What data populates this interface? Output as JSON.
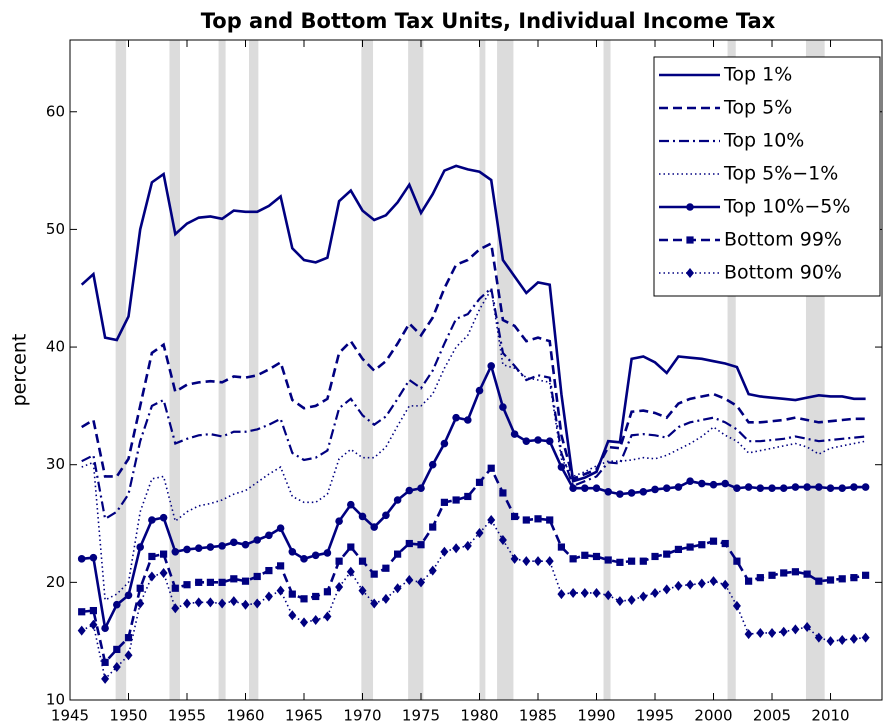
{
  "chart_data": {
    "type": "line",
    "title": "Top and Bottom Tax Units, Individual Income Tax",
    "y_label": "percent",
    "x": [
      1946,
      1947,
      1948,
      1949,
      1950,
      1951,
      1952,
      1953,
      1954,
      1955,
      1956,
      1957,
      1958,
      1959,
      1960,
      1961,
      1962,
      1963,
      1964,
      1965,
      1966,
      1967,
      1968,
      1969,
      1970,
      1971,
      1972,
      1973,
      1974,
      1975,
      1976,
      1977,
      1978,
      1979,
      1980,
      1981,
      1982,
      1983,
      1984,
      1985,
      1986,
      1987,
      1988,
      1989,
      1990,
      1991,
      1992,
      1993,
      1994,
      1995,
      1996,
      1997,
      1998,
      1999,
      2000,
      2001,
      2002,
      2003,
      2004,
      2005,
      2006,
      2007,
      2008,
      2009,
      2010,
      2011,
      2012,
      2013
    ],
    "xlim": [
      1945,
      2014.4
    ],
    "xticks": [
      1945,
      1950,
      1955,
      1960,
      1965,
      1970,
      1975,
      1980,
      1985,
      1990,
      1995,
      2000,
      2005,
      2010
    ],
    "ylim": [
      10,
      66.1
    ],
    "yticks": [
      10,
      20,
      30,
      40,
      50,
      60
    ],
    "legend": "upper right",
    "grid": false,
    "shaded_periods": [
      [
        1948.9,
        1949.8
      ],
      [
        1953.5,
        1954.4
      ],
      [
        1957.7,
        1958.3
      ],
      [
        1960.3,
        1961.1
      ],
      [
        1969.9,
        1970.9
      ],
      [
        1973.9,
        1975.2
      ],
      [
        1980.0,
        1980.5
      ],
      [
        1981.5,
        1982.9
      ],
      [
        1990.6,
        1991.2
      ],
      [
        2001.2,
        2001.9
      ],
      [
        2007.9,
        2009.5
      ]
    ],
    "shade_color": "#dcdcdc",
    "series": [
      {
        "name": "Top 1%",
        "color": "#000080",
        "line_style": "solid",
        "marker": "none",
        "values": [
          45.3,
          46.2,
          40.8,
          40.6,
          42.6,
          50,
          54,
          54.7,
          49.6,
          50.5,
          51,
          51.1,
          50.9,
          51.6,
          51.5,
          51.5,
          52,
          52.8,
          48.4,
          47.4,
          47.2,
          47.6,
          52.4,
          53.3,
          51.6,
          50.8,
          51.2,
          52.3,
          53.8,
          51.4,
          53,
          55,
          55.4,
          55.1,
          54.9,
          54.2,
          47.4,
          46,
          44.6,
          45.5,
          45.3,
          36,
          28.6,
          28.9,
          29.4,
          32,
          31.9,
          39,
          39.2,
          38.7,
          37.8,
          39.2,
          39.1,
          39,
          38.8,
          38.6,
          38.3,
          36,
          35.8,
          35.7,
          35.6,
          35.5,
          35.7,
          35.9,
          35.8,
          35.8,
          35.6,
          35.6
        ]
      },
      {
        "name": "Top 5%",
        "color": "#000080",
        "line_style": "dashed",
        "marker": "none",
        "values": [
          33.2,
          33.8,
          29,
          29,
          30.5,
          35,
          39.5,
          40.2,
          36.2,
          36.8,
          37,
          37.1,
          37,
          37.5,
          37.4,
          37.6,
          38.1,
          38.7,
          35.5,
          34.8,
          35,
          35.6,
          39.5,
          40.5,
          39,
          38,
          38.8,
          40.3,
          42,
          41,
          42.5,
          45,
          47,
          47.4,
          48.3,
          48.8,
          42.3,
          41.8,
          40.5,
          40.8,
          40.5,
          32.5,
          28.8,
          29.2,
          29.6,
          31.5,
          31.4,
          34.5,
          34.6,
          34.4,
          34,
          35.2,
          35.6,
          35.8,
          36,
          35.6,
          35,
          33.6,
          33.6,
          33.7,
          33.8,
          34,
          33.8,
          33.6,
          33.7,
          33.8,
          33.9,
          33.9
        ]
      },
      {
        "name": "Top 10%",
        "color": "#000080",
        "line_style": "dashdot",
        "marker": "none",
        "values": [
          30.3,
          30.8,
          25.4,
          26,
          27.5,
          32,
          35,
          35.5,
          31.8,
          32.2,
          32.5,
          32.6,
          32.4,
          32.8,
          32.8,
          33,
          33.4,
          33.9,
          31,
          30.4,
          30.6,
          31.2,
          34.8,
          35.6,
          34.2,
          33.4,
          34.1,
          35.6,
          37.2,
          36.5,
          38,
          40.3,
          42.4,
          42.8,
          44.1,
          45,
          39.5,
          38.4,
          37.2,
          37.6,
          37.4,
          31,
          28.2,
          28.6,
          29,
          30.2,
          30.1,
          32.5,
          32.6,
          32.5,
          32.3,
          33.2,
          33.6,
          33.8,
          34,
          33.6,
          33,
          32,
          32,
          32.1,
          32.2,
          32.4,
          32.2,
          32,
          32.1,
          32.2,
          32.3,
          32.4
        ]
      },
      {
        "name": "Top 5%−1%",
        "color": "#000080",
        "line_style": "dotted",
        "marker": "none",
        "values": [
          29.8,
          30.2,
          18.5,
          19,
          20,
          26,
          28.8,
          29,
          25.2,
          26,
          26.5,
          26.7,
          27,
          27.5,
          27.8,
          28.5,
          29.2,
          29.8,
          27.3,
          26.8,
          26.8,
          27.5,
          30.5,
          31.3,
          30.6,
          30.6,
          31.5,
          33.3,
          35,
          35,
          36,
          38.2,
          40,
          41,
          43.2,
          44.9,
          38.5,
          38.2,
          37.4,
          37.2,
          37,
          30.5,
          29,
          29.4,
          29.9,
          30.3,
          30.3,
          30.4,
          30.6,
          30.5,
          30.8,
          31.3,
          31.8,
          32.4,
          33.2,
          32.5,
          32,
          31,
          31.2,
          31.4,
          31.6,
          31.8,
          31.5,
          30.9,
          31.4,
          31.6,
          31.8,
          32
        ]
      },
      {
        "name": "Top 10%−5%",
        "color": "#000080",
        "line_style": "solid",
        "marker": "circle",
        "values": [
          22,
          22.1,
          16.1,
          18.1,
          18.9,
          23,
          25.3,
          25.5,
          22.6,
          22.8,
          22.9,
          23,
          23.1,
          23.4,
          23.2,
          23.6,
          24,
          24.6,
          22.6,
          22,
          22.3,
          22.5,
          25.2,
          26.6,
          25.6,
          24.7,
          25.7,
          27,
          27.8,
          28,
          30,
          31.8,
          34,
          33.8,
          36.3,
          38.4,
          34.9,
          32.6,
          32,
          32.1,
          32,
          29.8,
          28,
          28,
          28,
          27.7,
          27.5,
          27.6,
          27.7,
          27.9,
          28,
          28.1,
          28.6,
          28.4,
          28.3,
          28.4,
          28,
          28.1,
          28,
          28,
          28,
          28.1,
          28.1,
          28.1,
          28,
          28,
          28.1,
          28.1
        ]
      },
      {
        "name": "Bottom 99%",
        "color": "#000080",
        "line_style": "dashed",
        "marker": "square",
        "values": [
          17.5,
          17.6,
          13.2,
          14.3,
          15.3,
          19.5,
          22.2,
          22.4,
          19.5,
          19.8,
          20,
          20,
          20,
          20.3,
          20.1,
          20.5,
          21,
          21.4,
          19,
          18.6,
          18.8,
          19.2,
          21.8,
          23,
          21.8,
          20.7,
          21.2,
          22.4,
          23.3,
          23.2,
          24.7,
          26.8,
          27,
          27.3,
          28.5,
          29.7,
          27.6,
          25.6,
          25.3,
          25.4,
          25.3,
          23,
          22,
          22.3,
          22.2,
          21.9,
          21.7,
          21.8,
          21.8,
          22.2,
          22.4,
          22.8,
          23,
          23.2,
          23.5,
          23.3,
          21.8,
          20.1,
          20.4,
          20.6,
          20.8,
          20.9,
          20.7,
          20.1,
          20.2,
          20.3,
          20.4,
          20.6
        ]
      },
      {
        "name": "Bottom 90%",
        "color": "#000080",
        "line_style": "dotted",
        "marker": "diamond",
        "values": [
          15.9,
          16.4,
          11.8,
          12.8,
          13.8,
          18.2,
          20.5,
          20.8,
          17.8,
          18.2,
          18.3,
          18.3,
          18.2,
          18.4,
          18.1,
          18.2,
          18.8,
          19.3,
          17.2,
          16.6,
          16.8,
          17.1,
          19.6,
          20.9,
          19.3,
          18.2,
          18.6,
          19.5,
          20.2,
          20,
          21,
          22.6,
          22.9,
          23.1,
          24.2,
          25.3,
          23.6,
          22,
          21.8,
          21.8,
          21.8,
          19,
          19.1,
          19.1,
          19.1,
          18.9,
          18.4,
          18.5,
          18.8,
          19.1,
          19.4,
          19.7,
          19.8,
          19.9,
          20.1,
          19.8,
          18,
          15.6,
          15.7,
          15.7,
          15.8,
          16,
          16.2,
          15.3,
          15,
          15.1,
          15.2,
          15.3
        ]
      }
    ]
  }
}
